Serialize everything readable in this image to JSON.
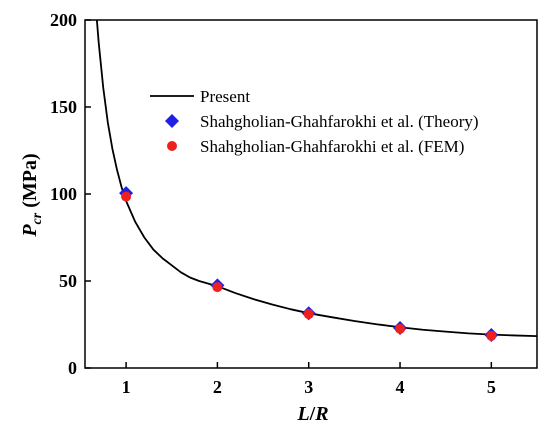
{
  "chart_data": {
    "type": "line",
    "xlabel": {
      "main": "L",
      "sep": "/",
      "tail": "R"
    },
    "ylabel": {
      "main": "P",
      "sub": "cr",
      "unit": " (MPa)"
    },
    "xlim": [
      0.55,
      5.5
    ],
    "ylim": [
      0,
      200
    ],
    "xticks": [
      1,
      2,
      3,
      4,
      5
    ],
    "yticks": [
      0,
      50,
      100,
      150,
      200
    ],
    "grid": false,
    "legend_position": "top-center",
    "series": [
      {
        "name": "Present",
        "style": "line",
        "color": "#000000",
        "x": [
          0.68,
          0.7,
          0.75,
          0.8,
          0.85,
          0.9,
          0.95,
          1.0,
          1.1,
          1.2,
          1.3,
          1.4,
          1.5,
          1.6,
          1.7,
          1.8,
          1.9,
          2.0,
          2.2,
          2.4,
          2.6,
          2.8,
          3.0,
          3.25,
          3.5,
          3.75,
          4.0,
          4.25,
          4.5,
          4.75,
          5.0,
          5.25,
          5.5
        ],
        "y": [
          200,
          187,
          161,
          141,
          126,
          114,
          104,
          96,
          84,
          75,
          68,
          63,
          59,
          55,
          52,
          50,
          48.5,
          47,
          43,
          39.5,
          36.5,
          33.8,
          31.5,
          29.2,
          27,
          25.1,
          23.4,
          22,
          20.9,
          19.9,
          19.2,
          18.7,
          18.3
        ]
      },
      {
        "name": "Shahgholian-Ghahfarokhi et al. (Theory)",
        "style": "diamond",
        "color": "#1f1fe6",
        "x": [
          1,
          2,
          3,
          4,
          5
        ],
        "y": [
          100.5,
          47.5,
          31.5,
          23,
          19
        ]
      },
      {
        "name": "Shahgholian-Ghahfarokhi et al. (FEM)",
        "style": "circle",
        "color": "#ef2020",
        "x": [
          1,
          2,
          3,
          4,
          5
        ],
        "y": [
          98.5,
          46.5,
          31,
          22.5,
          18.5
        ]
      }
    ]
  }
}
